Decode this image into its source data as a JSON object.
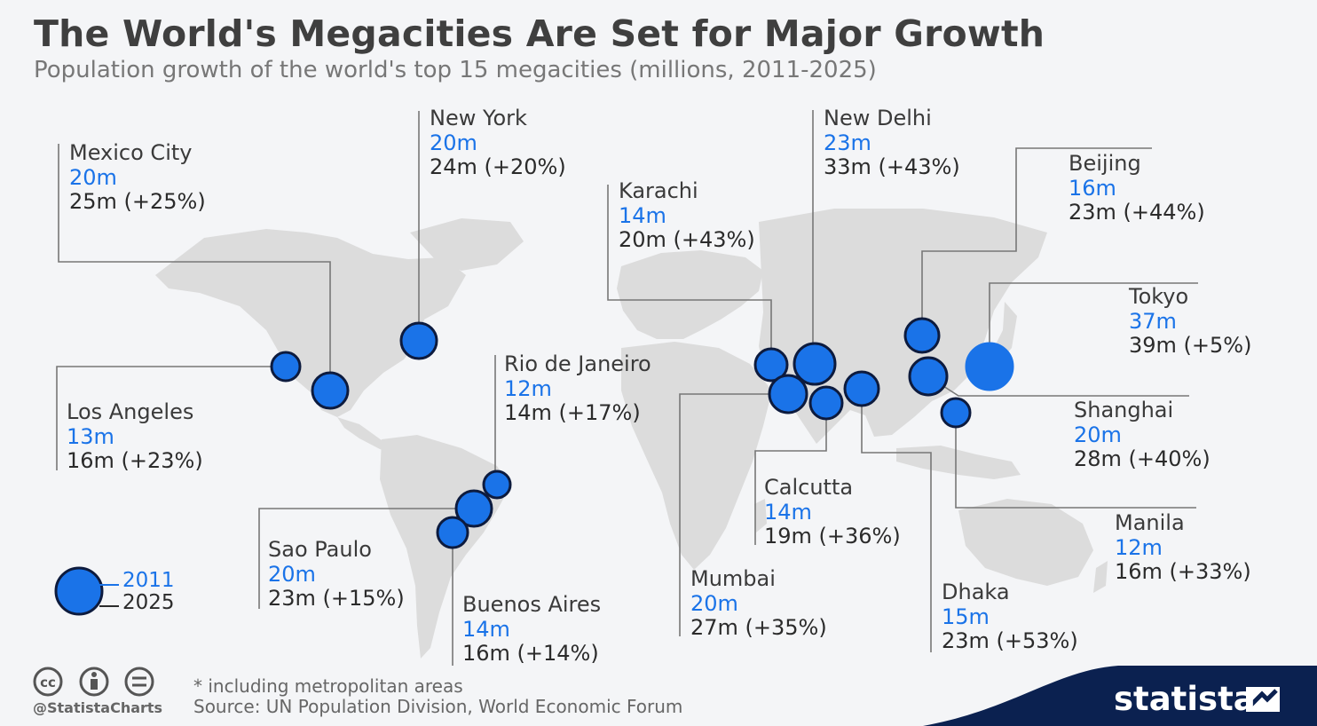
{
  "title": "The World's Megacities Are Set for Major Growth",
  "subtitle": "Population growth of the world's top 15 megacities (millions, 2011-2025)",
  "cities": {
    "mexico_city": {
      "name": "Mexico City",
      "v2011": "20m",
      "v2025": "25m (+25%)"
    },
    "new_york": {
      "name": "New York",
      "v2011": "20m",
      "v2025": "24m (+20%)"
    },
    "karachi": {
      "name": "Karachi",
      "v2011": "14m",
      "v2025": "20m (+43%)"
    },
    "new_delhi": {
      "name": "New Delhi",
      "v2011": "23m",
      "v2025": "33m (+43%)"
    },
    "beijing": {
      "name": "Beijing",
      "v2011": "16m",
      "v2025": "23m (+44%)"
    },
    "tokyo": {
      "name": "Tokyo",
      "v2011": "37m",
      "v2025": "39m (+5%)"
    },
    "shanghai": {
      "name": "Shanghai",
      "v2011": "20m",
      "v2025": "28m (+40%)"
    },
    "manila": {
      "name": "Manila",
      "v2011": "12m",
      "v2025": "16m (+33%)"
    },
    "los_angeles": {
      "name": "Los Angeles",
      "v2011": "13m",
      "v2025": "16m (+23%)"
    },
    "rio": {
      "name": "Rio de Janeiro",
      "v2011": "12m",
      "v2025": "14m (+17%)"
    },
    "calcutta": {
      "name": "Calcutta",
      "v2011": "14m",
      "v2025": "19m (+36%)"
    },
    "sao_paulo": {
      "name": "Sao Paulo",
      "v2011": "20m",
      "v2025": "23m (+15%)"
    },
    "buenos_aires": {
      "name": "Buenos Aires",
      "v2011": "14m",
      "v2025": "16m (+14%)"
    },
    "mumbai": {
      "name": "Mumbai",
      "v2011": "20m",
      "v2025": "27m (+35%)"
    },
    "dhaka": {
      "name": "Dhaka",
      "v2011": "15m",
      "v2025": "23m (+53%)"
    }
  },
  "legend": {
    "label_2011": "2011",
    "label_2025": "2025"
  },
  "footer": {
    "note": "* including metropolitan areas",
    "source": "Source: UN Population Division, World Economic Forum",
    "handle": "@StatistaCharts",
    "brand": "statista"
  },
  "colors": {
    "bubble": "#1a73e8",
    "bubble_outline": "#0d1b3e",
    "land": "#dcdcdc",
    "leader": "#777777",
    "brand_band": "#0b2150"
  }
}
